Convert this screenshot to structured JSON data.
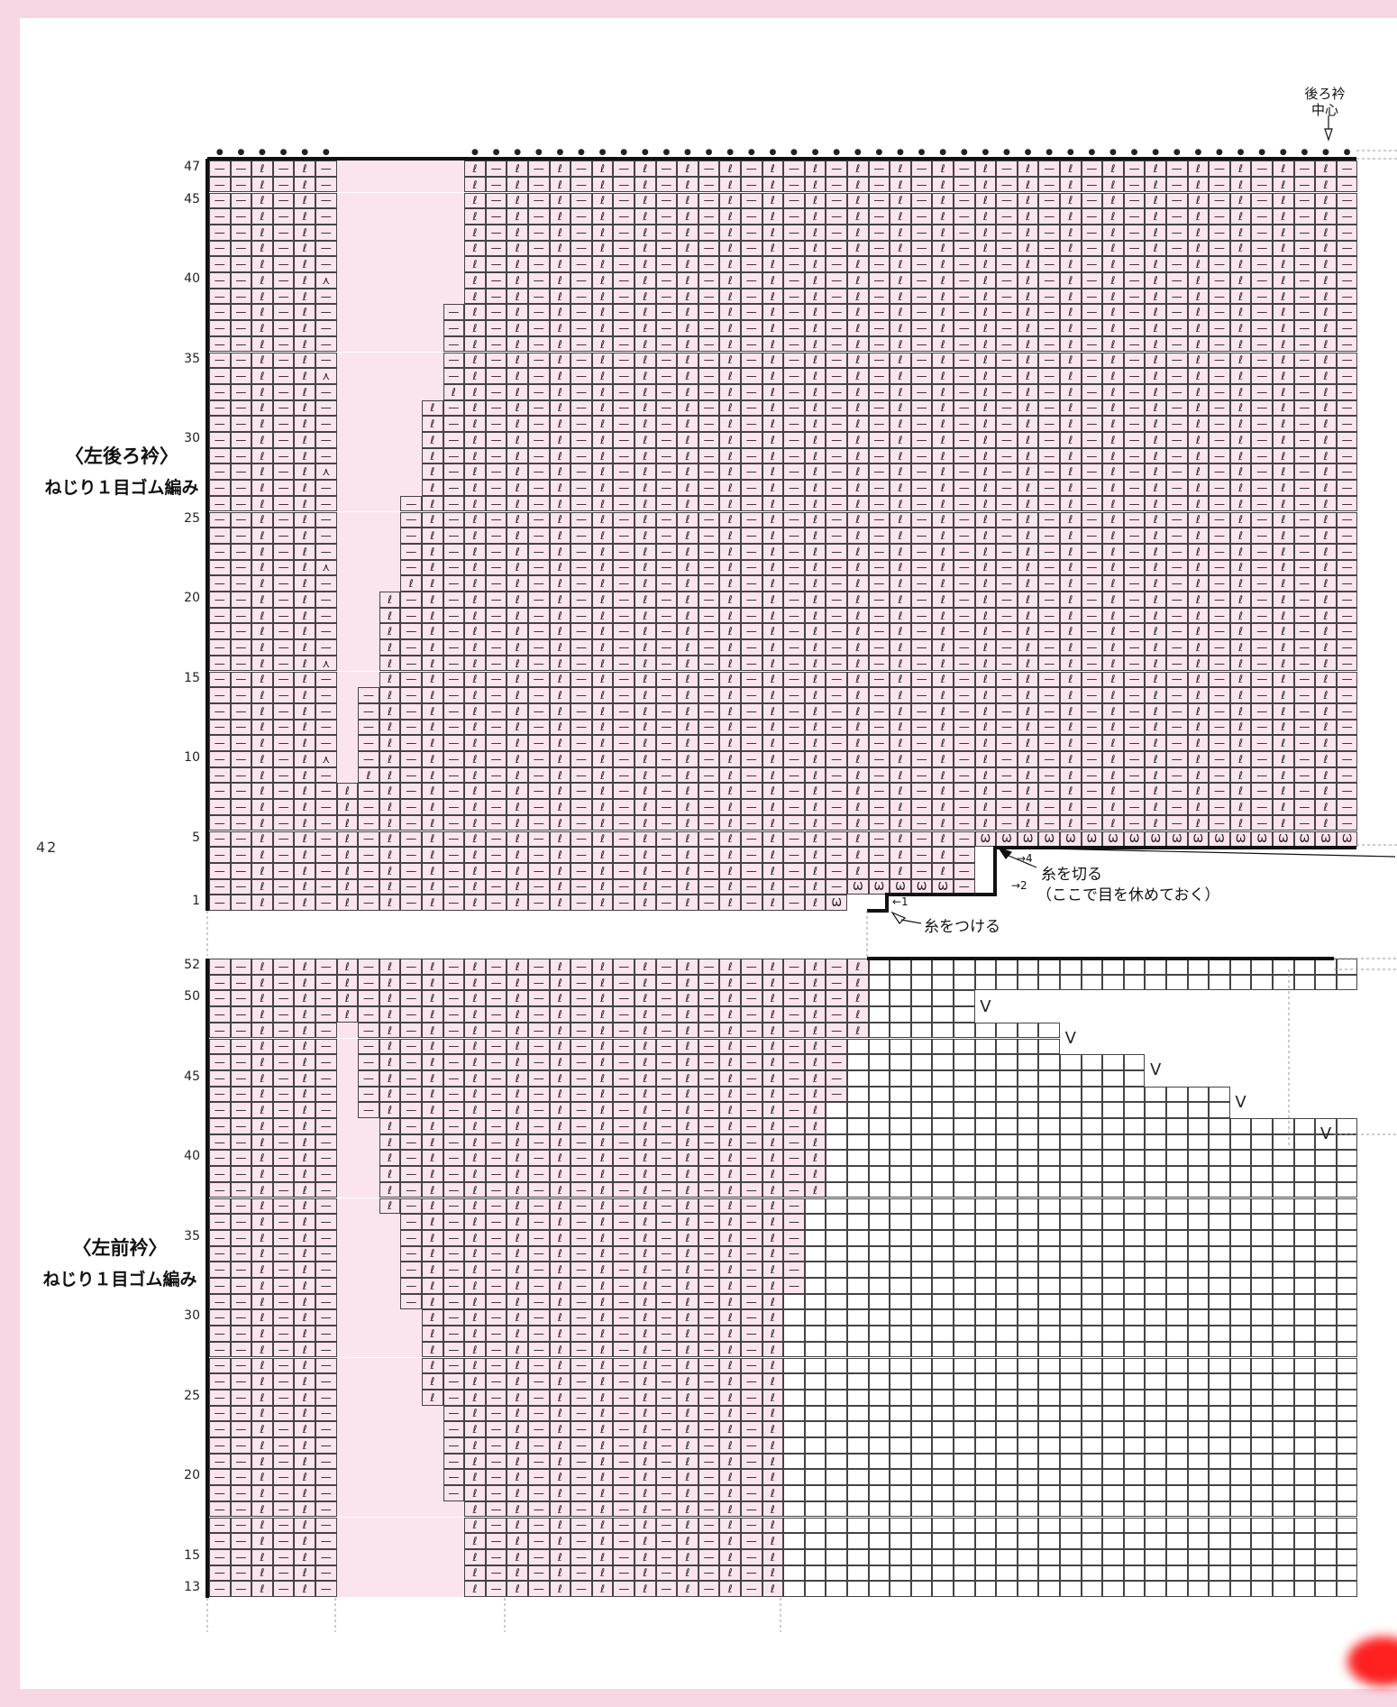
{
  "page_number": "42",
  "back_collar": {
    "title": "〈左後ろ衿〉",
    "stitch": "ねじり１目ゴム編み",
    "center_label_line1": "後ろ衿",
    "center_label_line2": "中心",
    "row_labels": [
      "47",
      "45",
      "40",
      "35",
      "30",
      "25",
      "20",
      "15",
      "10",
      "5",
      "1"
    ],
    "rows": 47,
    "annotations": {
      "attach_yarn": "糸をつける",
      "cut_yarn": "糸を切る",
      "rest_stitches": "（ここで目を休めておく）",
      "step1": "←1",
      "step2": "→2",
      "step4": "→4"
    }
  },
  "front_collar": {
    "title": "〈左前衿〉",
    "stitch": "ねじり１目ゴム編み",
    "row_labels": [
      "52",
      "50",
      "45",
      "40",
      "35",
      "30",
      "25",
      "20",
      "15",
      "13"
    ],
    "first_row": 13,
    "last_row": 52
  },
  "symbols": {
    "purl": "—",
    "twisted_knit": "ℓ",
    "yarn_over": "○",
    "decrease": "⋏",
    "slip": "V",
    "bind_off": "●",
    "cast_on_twist": "Ѡ"
  },
  "colors": {
    "pink_fill": "#fae4ee",
    "page_border": "#f7d6e4",
    "grid_line": "#333333"
  }
}
